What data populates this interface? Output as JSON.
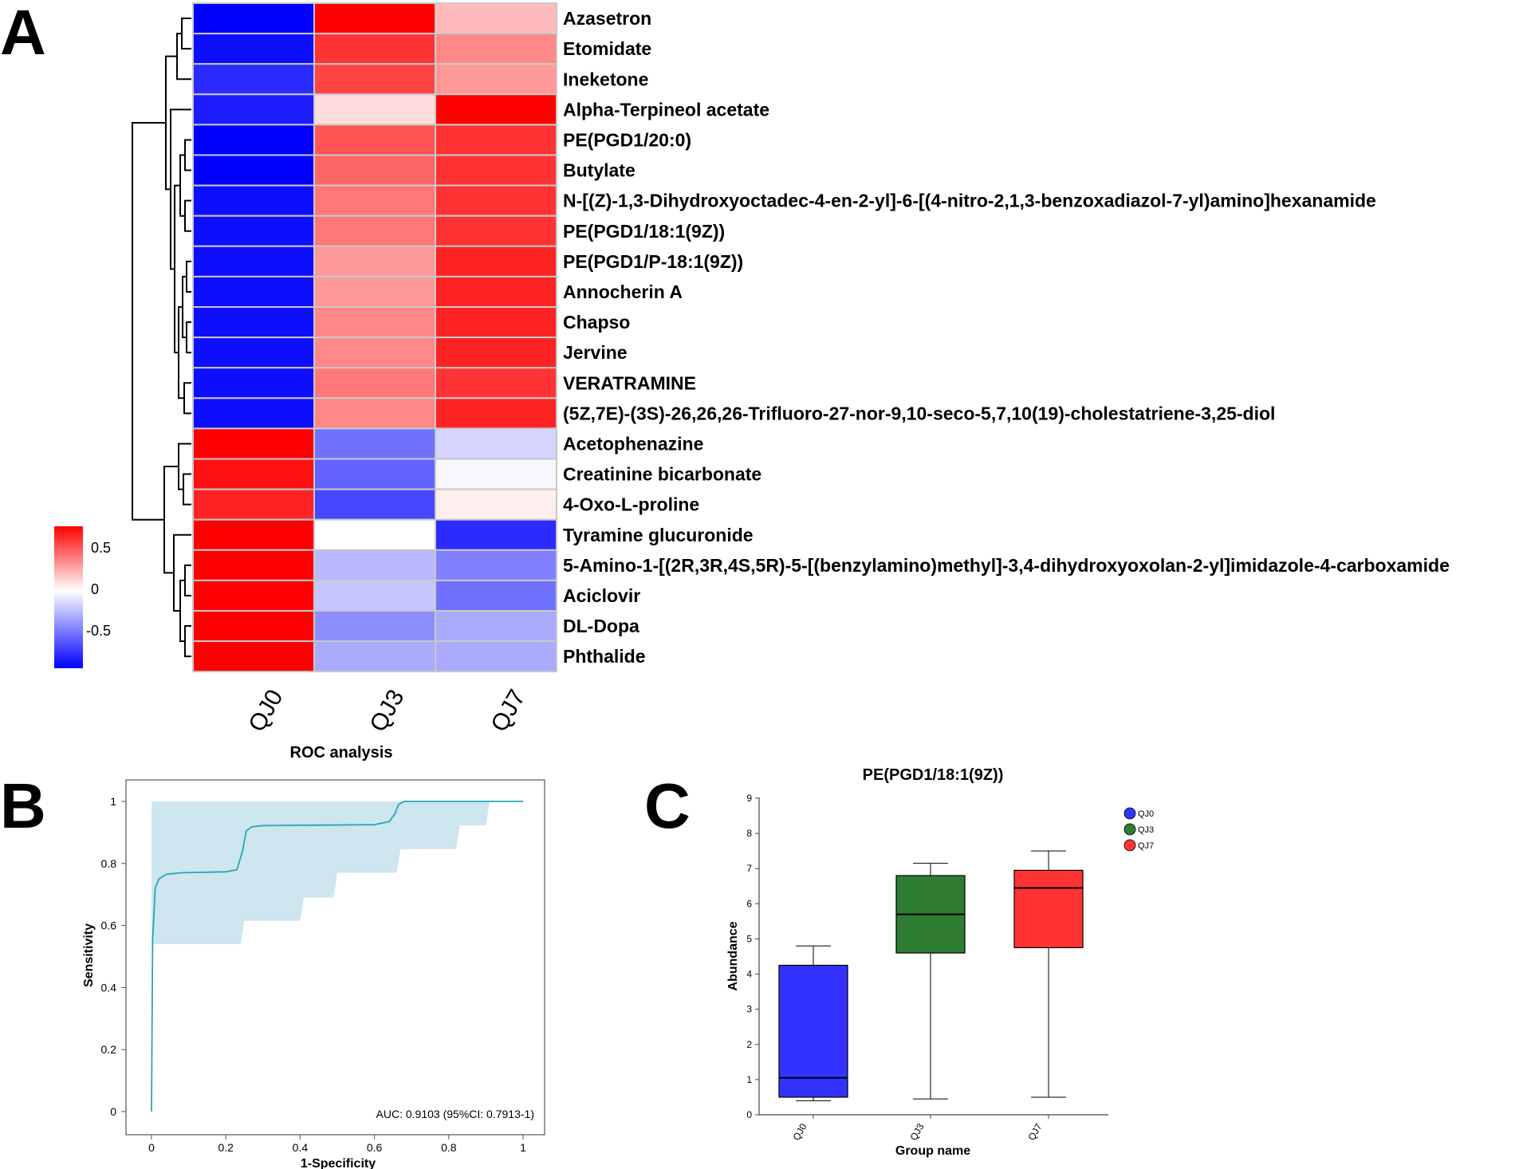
{
  "panels": {
    "a": "A",
    "b": "B",
    "c": "C"
  },
  "chart_data": [
    {
      "type": "heatmap",
      "columns": [
        "QJ0",
        "QJ3",
        "QJ7"
      ],
      "rows": [
        "Azasetron",
        "Etomidate",
        "Ineketone",
        "Alpha-Terpineol acetate",
        "PE(PGD1/20:0)",
        "Butylate",
        "N-[(Z)-1,3-Dihydroxyoctadec-4-en-2-yl]-6-[(4-nitro-2,1,3-benzoxadiazol-7-yl)amino]hexanamide",
        "PE(PGD1/18:1(9Z))",
        "PE(PGD1/P-18:1(9Z))",
        "Annocherin A",
        "Chapso",
        "Jervine",
        "VERATRAMINE",
        "(5Z,7E)-(3S)-26,26,26-Trifluoro-27-nor-9,10-seco-5,7,10(19)-cholestatriene-3,25-diol",
        "Acetophenazine",
        "Creatinine bicarbonate",
        "4-Oxo-L-proline",
        "Tyramine glucuronide",
        "5-Amino-1-[(2R,3R,4S,5R)-5-[(benzylamino)methyl]-3,4-dihydroxyoxolan-2-yl]imidazole-4-carboxamide",
        "Aciclovir",
        "DL-Dopa",
        "Phthalide"
      ],
      "values": [
        [
          -0.9,
          0.75,
          0.2
        ],
        [
          -0.85,
          0.6,
          0.35
        ],
        [
          -0.75,
          0.55,
          0.3
        ],
        [
          -0.8,
          0.1,
          0.75
        ],
        [
          -0.9,
          0.5,
          0.6
        ],
        [
          -0.9,
          0.45,
          0.6
        ],
        [
          -0.85,
          0.4,
          0.6
        ],
        [
          -0.85,
          0.4,
          0.6
        ],
        [
          -0.85,
          0.3,
          0.65
        ],
        [
          -0.85,
          0.3,
          0.65
        ],
        [
          -0.85,
          0.35,
          0.65
        ],
        [
          -0.85,
          0.35,
          0.65
        ],
        [
          -0.85,
          0.4,
          0.6
        ],
        [
          -0.85,
          0.35,
          0.65
        ],
        [
          0.75,
          -0.5,
          -0.15
        ],
        [
          0.7,
          -0.55,
          -0.03
        ],
        [
          0.65,
          -0.65,
          0.05
        ],
        [
          0.8,
          0.0,
          -0.75
        ],
        [
          0.8,
          -0.25,
          -0.45
        ],
        [
          0.8,
          -0.2,
          -0.5
        ],
        [
          0.8,
          -0.4,
          -0.3
        ],
        [
          0.8,
          -0.3,
          -0.3
        ]
      ],
      "colorbar": {
        "ticks": [
          "0.5",
          "0",
          "-0.5"
        ],
        "range": [
          -0.9,
          0.75
        ],
        "low_color": "#0000ff",
        "mid_color": "#ffffff",
        "high_color": "#ff0000"
      }
    },
    {
      "type": "line",
      "title": "ROC analysis",
      "xlabel": "1-Specificity",
      "ylabel": "Sensitivity",
      "xlim": [
        0,
        1
      ],
      "ylim": [
        0,
        1
      ],
      "xticks": [
        "0",
        "0.2",
        "0.4",
        "0.6",
        "0.8",
        "1"
      ],
      "yticks": [
        "0",
        "0.2",
        "0.4",
        "0.6",
        "0.8",
        "1"
      ],
      "annotation": "AUC: 0.9103 (95%CI: 0.7913-1)",
      "line_color": "#2aa6b4",
      "band_color": "#cde6f0",
      "curve": {
        "x": [
          0,
          0.003,
          0.01,
          0.02,
          0.04,
          0.08,
          0.2,
          0.23,
          0.245,
          0.255,
          0.27,
          0.3,
          0.6,
          0.64,
          0.655,
          0.665,
          0.68,
          0.72,
          1.0
        ],
        "y": [
          0,
          0.55,
          0.72,
          0.75,
          0.765,
          0.77,
          0.773,
          0.78,
          0.84,
          0.905,
          0.918,
          0.922,
          0.925,
          0.935,
          0.96,
          0.99,
          1.0,
          1.0,
          1.0
        ]
      },
      "ci_upper": {
        "x": [
          0,
          0.66,
          0.68,
          0.9,
          0.92,
          1.0
        ],
        "y": [
          1,
          1,
          1,
          1,
          1,
          1
        ]
      },
      "ci_lower": {
        "x": [
          0,
          0.24,
          0.25,
          0.4,
          0.41,
          0.49,
          0.5,
          0.66,
          0.67,
          0.82,
          0.83,
          0.9,
          0.91,
          1.0
        ],
        "y": [
          0.54,
          0.54,
          0.615,
          0.615,
          0.69,
          0.69,
          0.77,
          0.77,
          0.846,
          0.846,
          0.923,
          0.923,
          1.0,
          1.0
        ]
      }
    },
    {
      "type": "box",
      "title": "PE(PGD1/18:1(9Z))",
      "xlabel": "Group name",
      "ylabel": "Abundance",
      "ylim": [
        0,
        9
      ],
      "yticks": [
        "0",
        "1",
        "2",
        "3",
        "4",
        "5",
        "6",
        "7",
        "8",
        "9"
      ],
      "categories": [
        "QJ0",
        "QJ3",
        "QJ7"
      ],
      "colors": [
        "#3333ff",
        "#2e7d32",
        "#ff3333"
      ],
      "boxes": [
        {
          "min": 0.4,
          "q1": 0.5,
          "median": 1.05,
          "q3": 4.25,
          "max": 4.8
        },
        {
          "min": 0.45,
          "q1": 4.6,
          "median": 5.7,
          "q3": 6.8,
          "max": 7.15
        },
        {
          "min": 0.5,
          "q1": 4.75,
          "median": 6.45,
          "q3": 6.95,
          "max": 7.5
        }
      ],
      "legend": [
        "QJ0",
        "QJ3",
        "QJ7"
      ]
    }
  ]
}
